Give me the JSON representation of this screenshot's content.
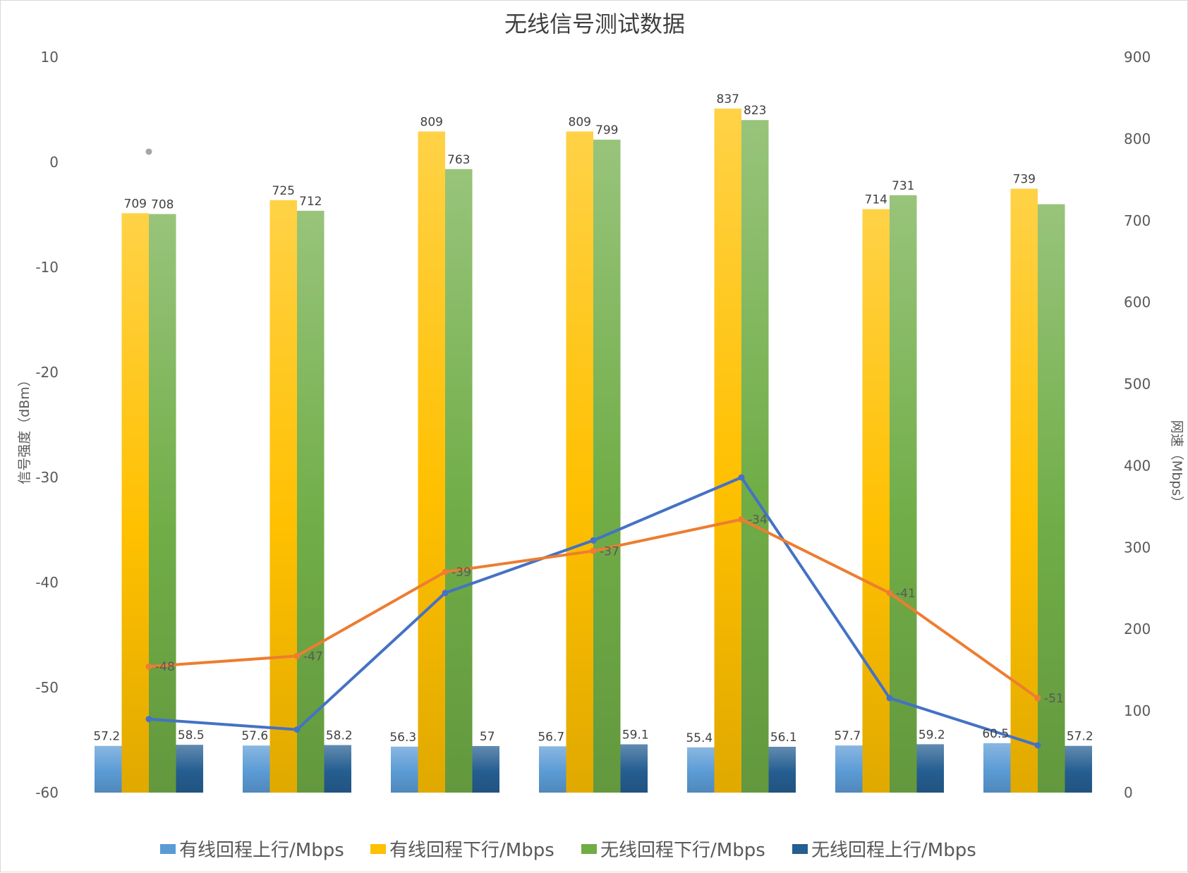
{
  "chart_data": {
    "type": "bar",
    "title": "无线信号测试数据",
    "categories": [
      "",
      "",
      "",
      "",
      "",
      "",
      ""
    ],
    "left_axis": {
      "label": "信号强度（dBm）",
      "range": [
        -60,
        10
      ],
      "ticks": [
        "10",
        "0",
        "-10",
        "-20",
        "-30",
        "-40",
        "-50",
        "-60"
      ]
    },
    "right_axis": {
      "label": "网速（Mbps）",
      "range": [
        0,
        900
      ],
      "ticks": [
        "900",
        "800",
        "700",
        "600",
        "500",
        "400",
        "300",
        "200",
        "100",
        "0"
      ]
    },
    "series": [
      {
        "name": "有线回程上行/Mbps",
        "type": "bar",
        "axis": "right",
        "color": "#5b9bd5",
        "values": [
          57.2,
          57.6,
          56.3,
          56.7,
          55.4,
          57.7,
          60.5
        ],
        "labels": [
          "57.2",
          "57.6",
          "56.3",
          "56.7",
          "55.4",
          "57.7",
          "60.5"
        ]
      },
      {
        "name": "有线回程下行/Mbps",
        "type": "bar",
        "axis": "right",
        "color": "#ffc000",
        "values": [
          709,
          725,
          809,
          809,
          837,
          714,
          739
        ],
        "labels": [
          "709",
          "725",
          "809",
          "809",
          "837",
          "714",
          "739"
        ]
      },
      {
        "name": "无线回程下行/Mbps",
        "type": "bar",
        "axis": "right",
        "color": "#70ad47",
        "values": [
          708,
          712,
          763,
          799,
          823,
          731,
          720
        ],
        "labels": [
          "708",
          "712",
          "763",
          "799",
          "823",
          "731",
          ""
        ]
      },
      {
        "name": "无线回程上行/Mbps",
        "type": "bar",
        "axis": "right",
        "color": "#255e91",
        "values": [
          58.5,
          58.2,
          57,
          59.1,
          56.1,
          59.2,
          57.2
        ],
        "labels": [
          "58.5",
          "58.2",
          "57",
          "59.1",
          "56.1",
          "59.2",
          "57.2"
        ]
      },
      {
        "type": "line",
        "axis": "left",
        "color": "#ed7d31",
        "values": [
          -48,
          -47,
          -39,
          -37,
          -34,
          -41,
          -51
        ],
        "labels": [
          "-48",
          "-47",
          "-39",
          "-37",
          "-34",
          "-41",
          "-51"
        ]
      },
      {
        "type": "line",
        "axis": "left",
        "color": "#4472c4",
        "values": [
          -53,
          -54,
          -41,
          -36,
          -30,
          -51,
          -55.5
        ],
        "labels": []
      }
    ],
    "legend_position": "bottom",
    "grid": false,
    "stray_marker": {
      "axis": "left",
      "category_index": 0,
      "value": 1
    }
  }
}
